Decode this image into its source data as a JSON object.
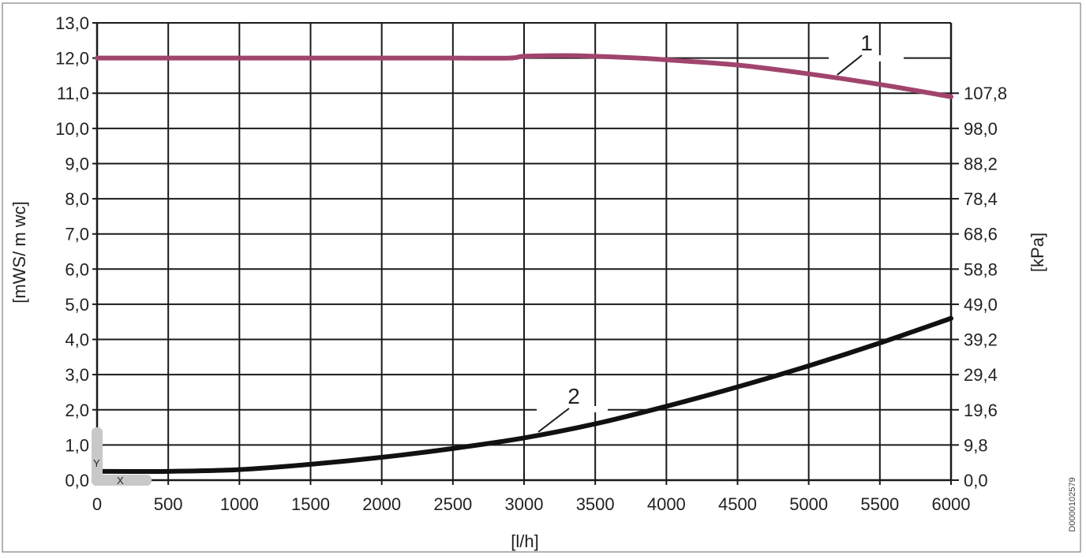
{
  "chart_data": {
    "type": "line",
    "xlabel": "[l/h]",
    "ylabel": "[mWS/ m wc]",
    "y2label": "[kPa]",
    "xlim": [
      0,
      6000
    ],
    "ylim": [
      0,
      13
    ],
    "y2lim": [
      0,
      127.4
    ],
    "x_ticks": [
      "0",
      "500",
      "1000",
      "1500",
      "2000",
      "2500",
      "3000",
      "3500",
      "4000",
      "4500",
      "5000",
      "5500",
      "6000"
    ],
    "y_ticks": [
      "0,0",
      "1,0",
      "2,0",
      "3,0",
      "4,0",
      "5,0",
      "6,0",
      "7,0",
      "8,0",
      "9,0",
      "10,0",
      "11,0",
      "12,0",
      "13,0"
    ],
    "y2_ticks": [
      {
        "label": "0,0",
        "value": 0
      },
      {
        "label": "9,8",
        "value": 9.8
      },
      {
        "label": "19,6",
        "value": 19.6
      },
      {
        "label": "29,4",
        "value": 29.4
      },
      {
        "label": "39,2",
        "value": 39.2
      },
      {
        "label": "49,0",
        "value": 49.0
      },
      {
        "label": "58,8",
        "value": 58.8
      },
      {
        "label": "68,6",
        "value": 68.6
      },
      {
        "label": "78,4",
        "value": 78.4
      },
      {
        "label": "88,2",
        "value": 88.2
      },
      {
        "label": "98,0",
        "value": 98.0
      },
      {
        "label": "107,8",
        "value": 107.8
      }
    ],
    "grid": true,
    "series": [
      {
        "callout": "1",
        "color": "#a0446e",
        "x": [
          0,
          500,
          1000,
          1500,
          2000,
          2500,
          2900,
          3000,
          3300,
          3500,
          3800,
          4000,
          4500,
          5000,
          5500,
          6000
        ],
        "y": [
          12.0,
          12.0,
          12.0,
          12.0,
          12.0,
          12.0,
          12.0,
          12.05,
          12.07,
          12.05,
          12.0,
          11.95,
          11.8,
          11.55,
          11.25,
          10.9
        ]
      },
      {
        "callout": "2",
        "color": "#111111",
        "x": [
          0,
          500,
          1000,
          1500,
          2000,
          2500,
          3000,
          3500,
          4000,
          4500,
          5000,
          5500,
          6000
        ],
        "y": [
          0.25,
          0.25,
          0.3,
          0.45,
          0.65,
          0.9,
          1.2,
          1.6,
          2.1,
          2.65,
          3.25,
          3.9,
          4.6
        ]
      }
    ],
    "annotations": {
      "axis_marker_y": "Y",
      "axis_marker_x": "X"
    }
  },
  "document_id": "D0000102579"
}
